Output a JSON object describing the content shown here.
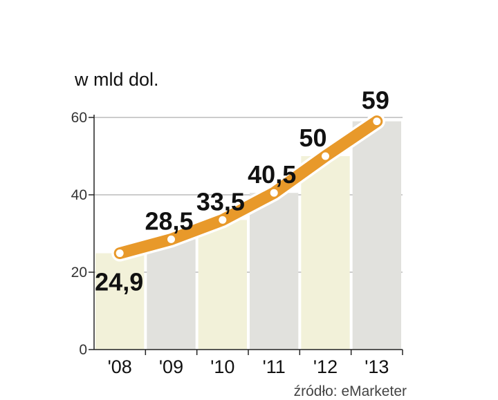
{
  "chart_data": {
    "type": "bar",
    "categories": [
      "'08",
      "'09",
      "'10",
      "'11",
      "'12",
      "'13"
    ],
    "values": [
      24.9,
      28.5,
      33.5,
      40.5,
      50,
      59
    ],
    "data_labels": [
      "24,9",
      "28,5",
      "33,5",
      "40,5",
      "50",
      "59"
    ],
    "unit_label": "w mld dol.",
    "ylim": [
      0,
      60
    ],
    "yticks": [
      0,
      20,
      40,
      60
    ],
    "grid": true,
    "overlay_line": true,
    "source": "źródło: eMarketer"
  },
  "colors": {
    "bar_light": "#f2f1d9",
    "bar_gray": "#e1e1dd",
    "line_orange": "#e8992a",
    "line_outline": "#ffffff",
    "marker_fill": "#ffffff",
    "gridline": "#9a9a9a",
    "axis": "#222222",
    "text": "#111111",
    "highlight_label": "#c0103c"
  }
}
